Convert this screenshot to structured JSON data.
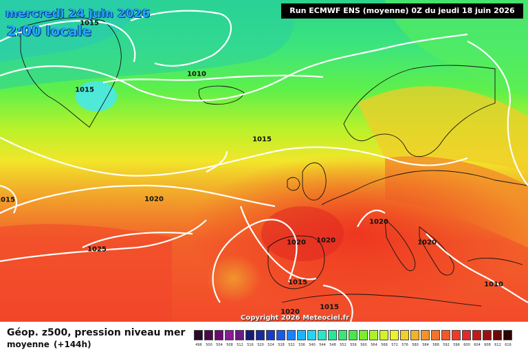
{
  "header": {
    "date_line": "mercredi 24 juin 2026",
    "time_line": "2:00 locale",
    "run_info": "Run ECMWF ENS (moyenne) 0Z du jeudi 18 juin 2026"
  },
  "copyright": "Copyright 2026 Meteociel.fr",
  "footer": {
    "title": "Géop. z500, pression niveau mer",
    "subtitle": "moyenne",
    "lead": "(+144h)"
  },
  "isobar_labels": [
    "1015",
    "1015",
    "1010",
    "1015",
    "1015",
    "1020",
    "1025",
    "1020",
    "1020",
    "1020",
    "1020",
    "1020",
    "1015",
    "1015",
    "1020",
    "1010"
  ],
  "scale": {
    "values": [
      "496",
      "500",
      "504",
      "508",
      "512",
      "516",
      "520",
      "524",
      "528",
      "532",
      "536",
      "540",
      "544",
      "548",
      "552",
      "556",
      "560",
      "564",
      "568",
      "572",
      "576",
      "580",
      "584",
      "588",
      "592",
      "596",
      "600",
      "604",
      "608",
      "612",
      "616"
    ],
    "colors": [
      "#2a0a2a",
      "#4a0a4a",
      "#6a0a72",
      "#8a1a96",
      "#6a1a80",
      "#1a1a70",
      "#1a2a9a",
      "#1a3ac8",
      "#1a5ae6",
      "#1a82ff",
      "#1ab4ff",
      "#22d6f0",
      "#2ae6c8",
      "#2ae69a",
      "#3ae674",
      "#4ae64a",
      "#7aee2a",
      "#aaf22a",
      "#d2f22a",
      "#f2f02a",
      "#f2d02a",
      "#f2b22a",
      "#f2942a",
      "#f2742a",
      "#f2582a",
      "#f23a2a",
      "#e22a2a",
      "#c21a1a",
      "#9a1010",
      "#6a0a0a",
      "#2a0505"
    ]
  }
}
